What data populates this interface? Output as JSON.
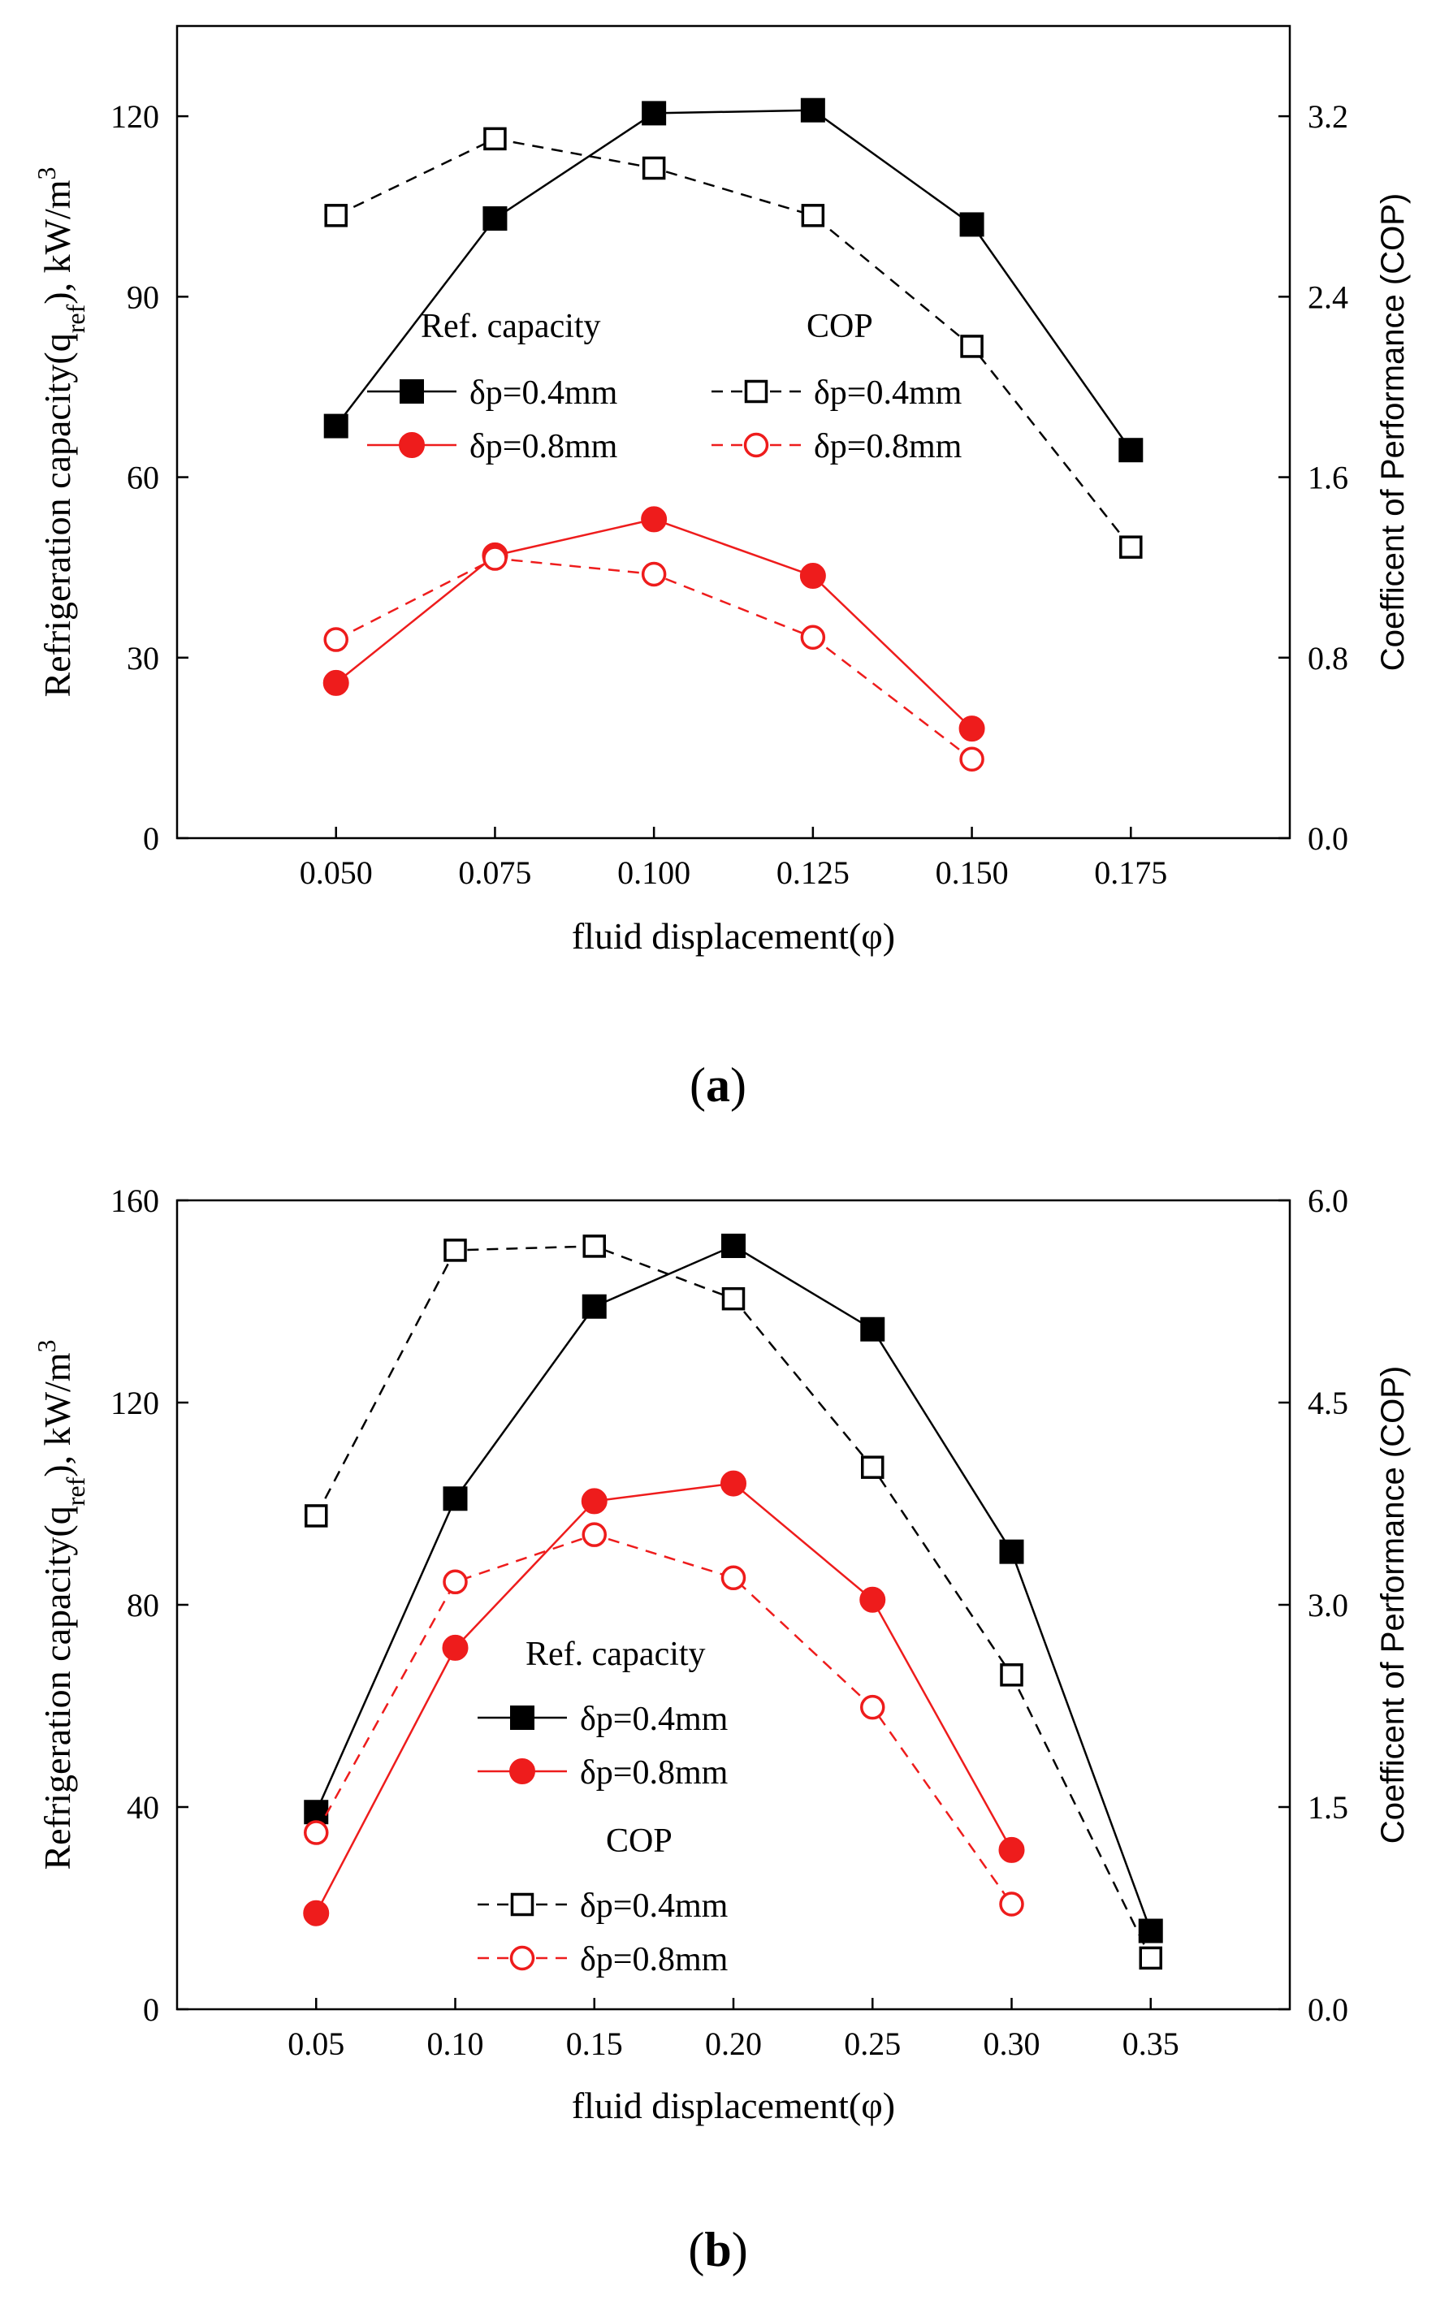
{
  "panels": [
    {
      "label_letter": "a",
      "x_title": "fluid displacement(φ)",
      "y_left_title_parts": [
        "Refrigeration capacity(q",
        "ref",
        "), kW/m",
        "3"
      ],
      "y_right_title": "Coefficent of Performance (COP)",
      "legend": {
        "capacity_title": "Ref. capacity",
        "cop_title": "COP",
        "entries": [
          "δp=0.4mm",
          "δp=0.8mm",
          "δp=0.4mm",
          "δp=0.8mm"
        ]
      }
    },
    {
      "label_letter": "b",
      "x_title": "fluid displacement(φ)",
      "y_left_title_parts": [
        "Refrigeration capacity(q",
        "ref",
        "), kW/m",
        "3"
      ],
      "y_right_title": "Coefficent of Performance (COP)",
      "legend": {
        "capacity_title": "Ref. capacity",
        "cop_title": "COP",
        "entries": [
          "δp=0.4mm",
          "δp=0.8mm",
          "δp=0.4mm",
          "δp=0.8mm"
        ]
      }
    }
  ],
  "colors": {
    "black": "#000000",
    "red": "#ee1c1c"
  },
  "chart_data": [
    {
      "type": "line",
      "xlim": [
        0.025,
        0.2
      ],
      "x_ticks": [
        0.05,
        0.075,
        0.1,
        0.125,
        0.15,
        0.175
      ],
      "x_tick_labels": [
        "0.050",
        "0.075",
        "0.100",
        "0.125",
        "0.150",
        "0.175"
      ],
      "y_left": {
        "lim": [
          0,
          135
        ],
        "ticks": [
          0,
          30,
          60,
          90,
          120
        ],
        "tick_labels": [
          "0",
          "30",
          "60",
          "90",
          "120"
        ]
      },
      "y_right": {
        "lim": [
          0,
          3.6
        ],
        "ticks": [
          0,
          0.8,
          1.6,
          2.4,
          3.2
        ],
        "tick_labels": [
          "0.0",
          "0.8",
          "1.6",
          "2.4",
          "3.2"
        ]
      },
      "series": [
        {
          "name": "δp=0.4mm",
          "group": "Ref. capacity",
          "axis": "left",
          "color": "#000000",
          "marker": "square-filled",
          "dash": false,
          "x": [
            0.05,
            0.075,
            0.1,
            0.125,
            0.15,
            0.175
          ],
          "y": [
            68.5,
            103,
            120.5,
            121,
            102,
            64.5
          ]
        },
        {
          "name": "δp=0.8mm",
          "group": "Ref. capacity",
          "axis": "left",
          "color": "#ee1c1c",
          "marker": "circle-filled",
          "dash": false,
          "x": [
            0.05,
            0.075,
            0.1,
            0.125,
            0.15
          ],
          "y": [
            25.8,
            47,
            53,
            43.6,
            18.2
          ]
        },
        {
          "name": "δp=0.4mm",
          "group": "COP",
          "axis": "right",
          "color": "#000000",
          "marker": "square-open",
          "dash": true,
          "x": [
            0.05,
            0.075,
            0.1,
            0.125,
            0.15,
            0.175
          ],
          "y": [
            2.76,
            3.1,
            2.97,
            2.76,
            2.18,
            1.29
          ]
        },
        {
          "name": "δp=0.8mm",
          "group": "COP",
          "axis": "right",
          "color": "#ee1c1c",
          "marker": "circle-open",
          "dash": true,
          "x": [
            0.05,
            0.075,
            0.1,
            0.125,
            0.15
          ],
          "y": [
            0.88,
            1.24,
            1.17,
            0.89,
            0.35
          ]
        }
      ]
    },
    {
      "type": "line",
      "xlim": [
        0.0,
        0.4
      ],
      "x_ticks": [
        0.05,
        0.1,
        0.15,
        0.2,
        0.25,
        0.3,
        0.35
      ],
      "x_tick_labels": [
        "0.05",
        "0.10",
        "0.15",
        "0.20",
        "0.25",
        "0.30",
        "0.35"
      ],
      "y_left": {
        "lim": [
          0,
          160
        ],
        "ticks": [
          0,
          40,
          80,
          120,
          160
        ],
        "tick_labels": [
          "0",
          "40",
          "80",
          "120",
          "160"
        ]
      },
      "y_right": {
        "lim": [
          0,
          6.0
        ],
        "ticks": [
          0,
          1.5,
          3.0,
          4.5,
          6.0
        ],
        "tick_labels": [
          "0.0",
          "1.5",
          "3.0",
          "4.5",
          "6.0"
        ]
      },
      "series": [
        {
          "name": "δp=0.4mm",
          "group": "Ref. capacity",
          "axis": "left",
          "color": "#000000",
          "marker": "square-filled",
          "dash": false,
          "x": [
            0.05,
            0.1,
            0.15,
            0.2,
            0.25,
            0.3,
            0.35
          ],
          "y": [
            39,
            101,
            139,
            151,
            134.5,
            90.5,
            15.5
          ]
        },
        {
          "name": "δp=0.8mm",
          "group": "Ref. capacity",
          "axis": "left",
          "color": "#ee1c1c",
          "marker": "circle-filled",
          "dash": false,
          "x": [
            0.05,
            0.1,
            0.15,
            0.2,
            0.25,
            0.3
          ],
          "y": [
            19,
            71.5,
            100.5,
            104,
            81,
            31.5
          ]
        },
        {
          "name": "δp=0.4mm",
          "group": "COP",
          "axis": "right",
          "color": "#000000",
          "marker": "square-open",
          "dash": true,
          "x": [
            0.05,
            0.1,
            0.15,
            0.2,
            0.25,
            0.3,
            0.35
          ],
          "y": [
            3.66,
            5.63,
            5.66,
            5.27,
            4.02,
            2.48,
            0.38
          ]
        },
        {
          "name": "δp=0.8mm",
          "group": "COP",
          "axis": "right",
          "color": "#ee1c1c",
          "marker": "circle-open",
          "dash": true,
          "x": [
            0.05,
            0.1,
            0.15,
            0.2,
            0.25,
            0.3
          ],
          "y": [
            1.31,
            3.17,
            3.52,
            3.2,
            2.24,
            0.78
          ]
        }
      ]
    }
  ]
}
